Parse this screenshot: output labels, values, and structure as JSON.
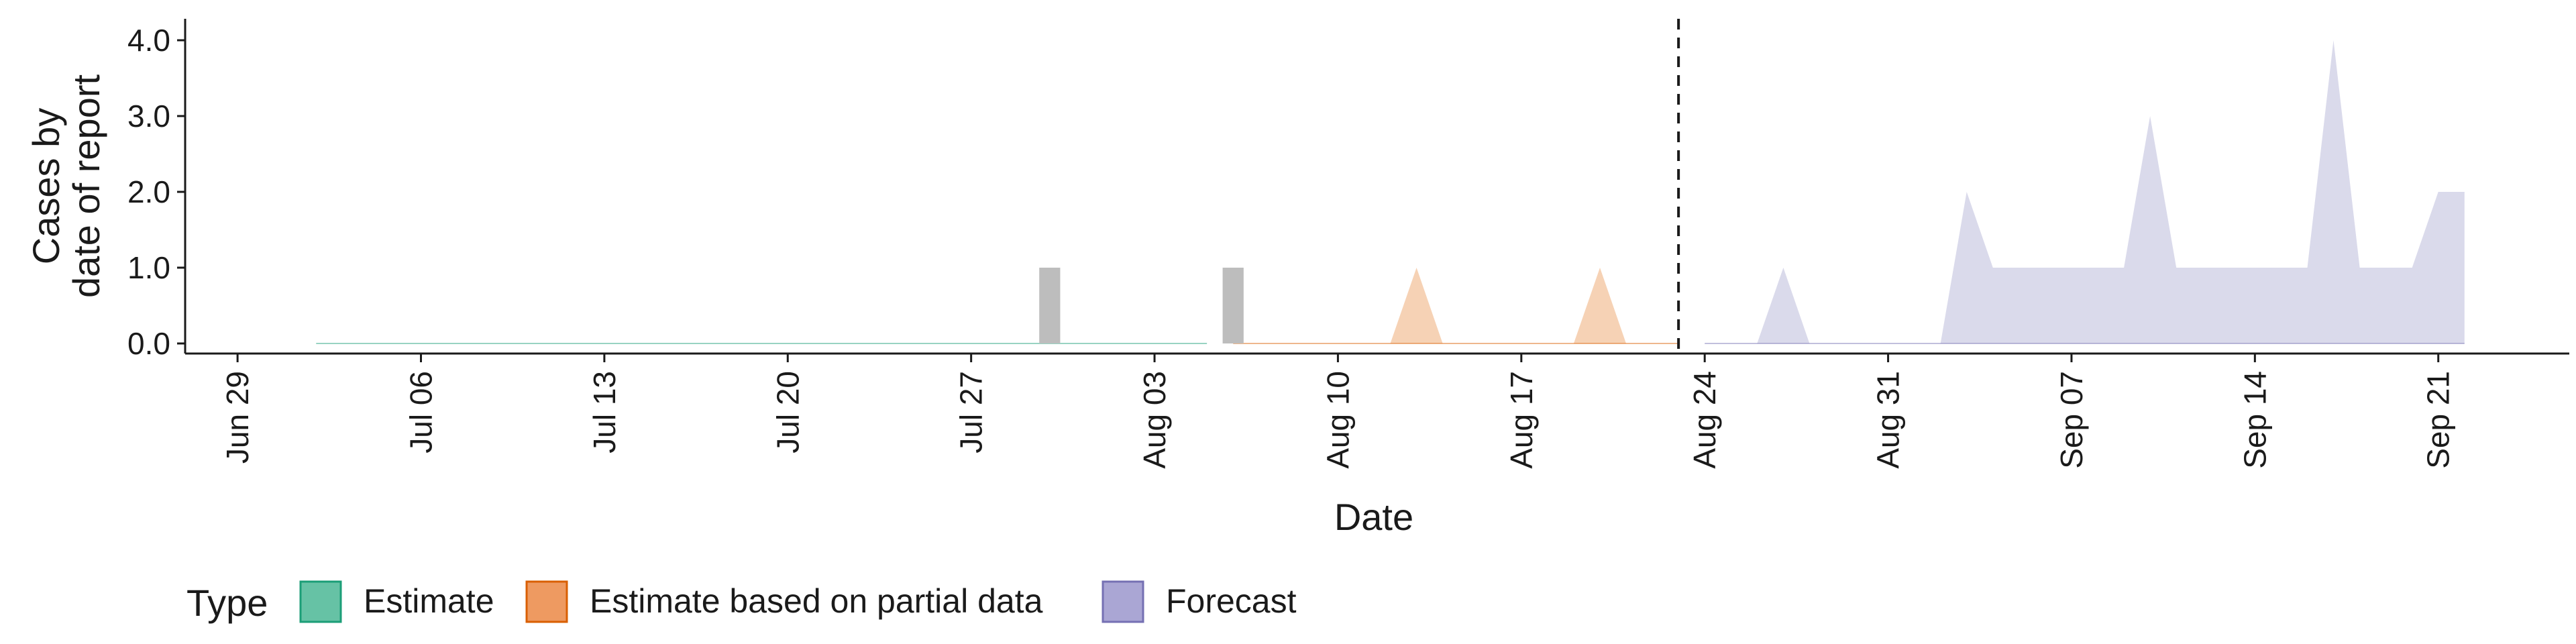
{
  "chart_data": {
    "type": "area",
    "xlabel": "Date",
    "ylabel_lines": [
      "Cases by",
      "date of report"
    ],
    "ylim": [
      0,
      4.2
    ],
    "yticks": [
      {
        "value": 0,
        "label": "0.0"
      },
      {
        "value": 1,
        "label": "1.0"
      },
      {
        "value": 2,
        "label": "2.0"
      },
      {
        "value": 3,
        "label": "3.0"
      },
      {
        "value": 4,
        "label": "4.0"
      }
    ],
    "xlim": [
      "2020-06-27",
      "2020-09-26"
    ],
    "xticks": [
      {
        "date": "2020-06-29",
        "label": "Jun 29"
      },
      {
        "date": "2020-07-06",
        "label": "Jul 06"
      },
      {
        "date": "2020-07-13",
        "label": "Jul 13"
      },
      {
        "date": "2020-07-20",
        "label": "Jul 20"
      },
      {
        "date": "2020-07-27",
        "label": "Jul 27"
      },
      {
        "date": "2020-08-03",
        "label": "Aug 03"
      },
      {
        "date": "2020-08-10",
        "label": "Aug 10"
      },
      {
        "date": "2020-08-17",
        "label": "Aug 17"
      },
      {
        "date": "2020-08-24",
        "label": "Aug 24"
      },
      {
        "date": "2020-08-31",
        "label": "Aug 31"
      },
      {
        "date": "2020-09-07",
        "label": "Sep 07"
      },
      {
        "date": "2020-09-14",
        "label": "Sep 14"
      },
      {
        "date": "2020-09-21",
        "label": "Sep 21"
      }
    ],
    "vline_date": "2020-08-23",
    "observed_bars": [
      {
        "date": "2020-07-30",
        "value": 1
      },
      {
        "date": "2020-08-06",
        "value": 1
      }
    ],
    "legend_title": "Type",
    "legend_position": "bottom",
    "series": [
      {
        "name": "Estimate",
        "color": "#1b9e77",
        "points": [
          {
            "date": "2020-07-02",
            "value": 0
          },
          {
            "date": "2020-08-05",
            "value": 0
          }
        ]
      },
      {
        "name": "Estimate based on partial data",
        "color": "#d95f02",
        "points": [
          {
            "date": "2020-08-06",
            "value": 0
          },
          {
            "date": "2020-08-12",
            "value": 0
          },
          {
            "date": "2020-08-13",
            "value": 1
          },
          {
            "date": "2020-08-14",
            "value": 0
          },
          {
            "date": "2020-08-19",
            "value": 0
          },
          {
            "date": "2020-08-20",
            "value": 1
          },
          {
            "date": "2020-08-21",
            "value": 0
          },
          {
            "date": "2020-08-23",
            "value": 0
          }
        ]
      },
      {
        "name": "Forecast",
        "color": "#7570b3",
        "points": [
          {
            "date": "2020-08-24",
            "value": 0
          },
          {
            "date": "2020-08-26",
            "value": 0
          },
          {
            "date": "2020-08-27",
            "value": 1
          },
          {
            "date": "2020-08-28",
            "value": 0
          },
          {
            "date": "2020-09-02",
            "value": 0
          },
          {
            "date": "2020-09-03",
            "value": 2
          },
          {
            "date": "2020-09-04",
            "value": 1
          },
          {
            "date": "2020-09-09",
            "value": 1
          },
          {
            "date": "2020-09-10",
            "value": 3
          },
          {
            "date": "2020-09-11",
            "value": 1
          },
          {
            "date": "2020-09-16",
            "value": 1
          },
          {
            "date": "2020-09-17",
            "value": 4
          },
          {
            "date": "2020-09-18",
            "value": 1
          },
          {
            "date": "2020-09-20",
            "value": 1
          },
          {
            "date": "2020-09-21",
            "value": 2
          },
          {
            "date": "2020-09-22",
            "value": 2
          }
        ]
      }
    ]
  }
}
